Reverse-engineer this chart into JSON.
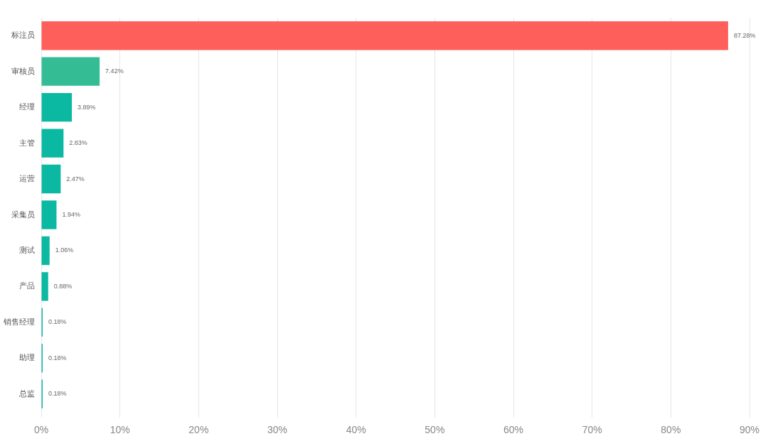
{
  "chart_data": {
    "type": "bar",
    "orientation": "horizontal",
    "categories": [
      "标注员",
      "审核员",
      "经理",
      "主管",
      "运营",
      "采集员",
      "测试",
      "产品",
      "销售经理",
      "助理",
      "总监"
    ],
    "values": [
      87.28,
      7.42,
      3.89,
      2.83,
      2.47,
      1.94,
      1.06,
      0.88,
      0.18,
      0.18,
      0.18
    ],
    "colors": [
      "#fe5f5b",
      "#34bd95",
      "#0bb8a1",
      "#0bb8a1",
      "#0bb8a1",
      "#0bb8a1",
      "#0bb8a1",
      "#0bb8a1",
      "#0bb8a1",
      "#0bb8a1",
      "#0bb8a1"
    ],
    "value_labels": [
      "87.28%",
      "7.42%",
      "3.89%",
      "2.83%",
      "2.47%",
      "1.94%",
      "1.06%",
      "0.88%",
      "0.18%",
      "0.18%",
      "0.18%"
    ],
    "xlim": [
      0,
      90
    ],
    "xticks": [
      {
        "value": 0,
        "label": "0%"
      },
      {
        "value": 10,
        "label": "10%"
      },
      {
        "value": 20,
        "label": "20%"
      },
      {
        "value": 30,
        "label": "30%"
      },
      {
        "value": 40,
        "label": "40%"
      },
      {
        "value": 50,
        "label": "50%"
      },
      {
        "value": 60,
        "label": "60%"
      },
      {
        "value": 70,
        "label": "70%"
      },
      {
        "value": 80,
        "label": "80%"
      },
      {
        "value": 90,
        "label": "90%"
      }
    ],
    "grid": "x"
  }
}
